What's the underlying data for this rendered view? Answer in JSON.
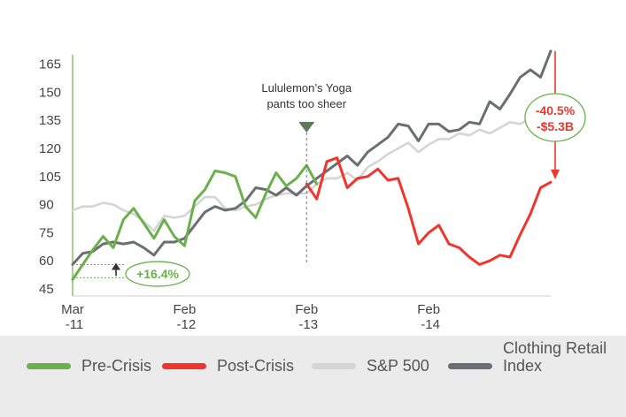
{
  "chart_data": {
    "type": "line",
    "title": "",
    "xlabel": "",
    "ylabel": "",
    "ylim": [
      45,
      170
    ],
    "yticks": [
      45,
      60,
      75,
      90,
      105,
      120,
      135,
      150,
      165
    ],
    "x_tick_labels": [
      {
        "line1": "Mar",
        "line2": "-11",
        "index": 0
      },
      {
        "line1": "Feb",
        "line2": "-12",
        "index": 11
      },
      {
        "line1": "Feb",
        "line2": "-13",
        "index": 23
      },
      {
        "line1": "Feb",
        "line2": "-14",
        "index": 35
      }
    ],
    "x_count": 48,
    "grid": false,
    "legend_position": "bottom",
    "series": [
      {
        "name": "Pre-Crisis",
        "color": "#6ab04c",
        "start": 0,
        "values": [
          50,
          58,
          66,
          73,
          67,
          82,
          88,
          80,
          72,
          82,
          73,
          68,
          92,
          98,
          108,
          107,
          105,
          89,
          83,
          96,
          107,
          100,
          104,
          111,
          101
        ]
      },
      {
        "name": "Post-Crisis",
        "color": "#f0362b",
        "start": 23,
        "values": [
          101,
          93,
          113,
          115,
          99,
          104,
          105,
          109,
          103,
          104,
          88,
          69,
          75,
          79,
          69,
          67,
          62,
          58,
          60,
          63,
          62,
          74,
          85,
          99,
          102
        ]
      },
      {
        "name": "S&P 500",
        "color": "#d5d5d5",
        "start": 0,
        "values": [
          87,
          89,
          89,
          91,
          90,
          87,
          85,
          81,
          76,
          84,
          83,
          84,
          89,
          94,
          94,
          88,
          87,
          89,
          90,
          93,
          95,
          96,
          96,
          96,
          101,
          104,
          104,
          107,
          103,
          110,
          113,
          117,
          120,
          123,
          118,
          122,
          125,
          125,
          128,
          127,
          130,
          128,
          131,
          134,
          133,
          136,
          138,
          138
        ]
      },
      {
        "name": "Clothing Retail Index",
        "color": "#6b6e72",
        "start": 0,
        "values": [
          58,
          64,
          65,
          69,
          70,
          69,
          70,
          67,
          63,
          70,
          70,
          72,
          79,
          86,
          89,
          87,
          88,
          92,
          99,
          98,
          95,
          99,
          95,
          100,
          104,
          108,
          112,
          116,
          111,
          118,
          122,
          126,
          133,
          132,
          124,
          133,
          133,
          129,
          130,
          134,
          133,
          145,
          141,
          149,
          158,
          162,
          158,
          172
        ]
      }
    ],
    "annotations": {
      "event_line1": "Lululemon’s Yoga",
      "event_line2": "pants too sheer",
      "gain_label": "+16.4%",
      "loss_line1": "-40.5%",
      "loss_line2": "-$5.3B"
    }
  },
  "legend": [
    {
      "label": "Pre-Crisis",
      "color": "#6ab04c"
    },
    {
      "label": "Post-Crisis",
      "color": "#f0362b"
    },
    {
      "label": "S&P 500",
      "color": "#d5d5d5"
    },
    {
      "label_line1": "Clothing Retail",
      "label_line2": "Index",
      "color": "#6b6e72"
    }
  ]
}
